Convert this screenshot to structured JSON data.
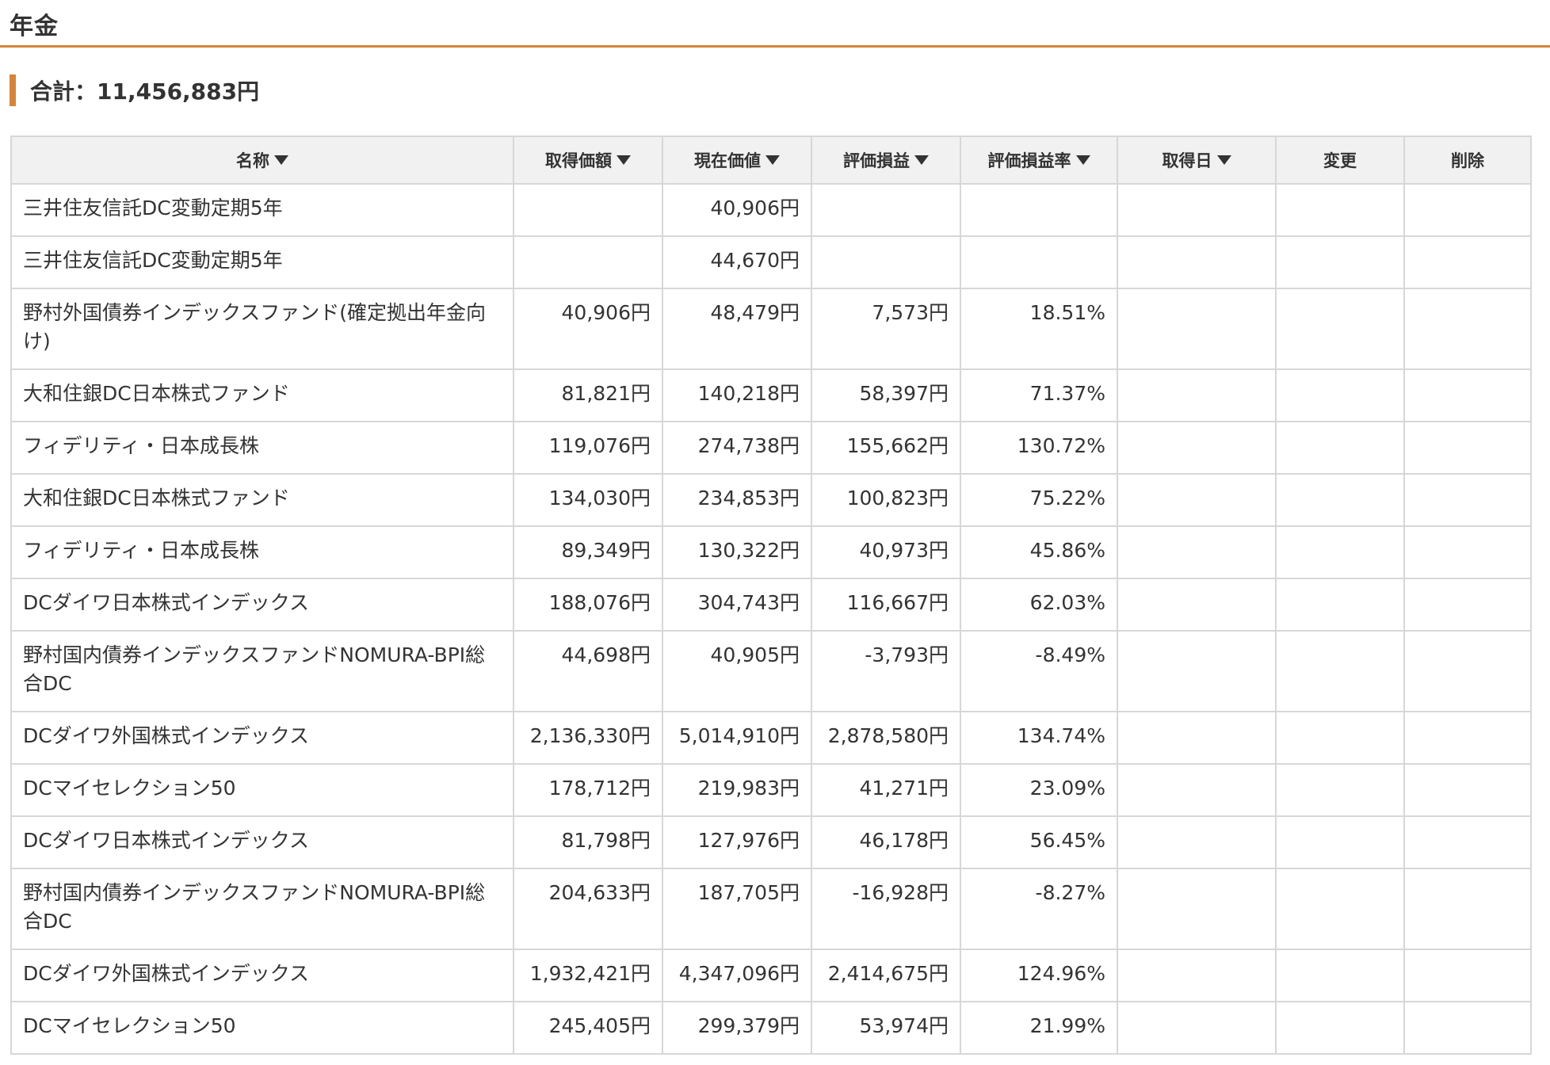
{
  "page": {
    "title": "年金",
    "total_label": "合計：11,456,883円"
  },
  "colors": {
    "accent": "#d5843b",
    "positive": "#4a6ea8",
    "negative": "#a83a3a",
    "header_bg": "#f1f1f1",
    "border": "#d7d7d7"
  },
  "table": {
    "headers": {
      "name": "名称",
      "acquisition": "取得価額",
      "current": "現在価値",
      "gain": "評価損益",
      "gain_rate": "評価損益率",
      "date": "取得日",
      "edit": "変更",
      "delete": "削除"
    },
    "rows": [
      {
        "name": "三井住友信託DC変動定期5年",
        "acquisition": "",
        "current": "40,906円",
        "gain": "",
        "gain_rate": "",
        "sign": ""
      },
      {
        "name": "三井住友信託DC変動定期5年",
        "acquisition": "",
        "current": "44,670円",
        "gain": "",
        "gain_rate": "",
        "sign": ""
      },
      {
        "name": "野村外国債券インデックスファンド(確定拠出年金向け)",
        "acquisition": "40,906円",
        "current": "48,479円",
        "gain": "7,573円",
        "gain_rate": "18.51%",
        "sign": "pos"
      },
      {
        "name": "大和住銀DC日本株式ファンド",
        "acquisition": "81,821円",
        "current": "140,218円",
        "gain": "58,397円",
        "gain_rate": "71.37%",
        "sign": "pos"
      },
      {
        "name": "フィデリティ・日本成長株",
        "acquisition": "119,076円",
        "current": "274,738円",
        "gain": "155,662円",
        "gain_rate": "130.72%",
        "sign": "pos"
      },
      {
        "name": "大和住銀DC日本株式ファンド",
        "acquisition": "134,030円",
        "current": "234,853円",
        "gain": "100,823円",
        "gain_rate": "75.22%",
        "sign": "pos"
      },
      {
        "name": "フィデリティ・日本成長株",
        "acquisition": "89,349円",
        "current": "130,322円",
        "gain": "40,973円",
        "gain_rate": "45.86%",
        "sign": "pos"
      },
      {
        "name": "DCダイワ日本株式インデックス",
        "acquisition": "188,076円",
        "current": "304,743円",
        "gain": "116,667円",
        "gain_rate": "62.03%",
        "sign": "pos"
      },
      {
        "name": "野村国内債券インデックスファンドNOMURA-BPI総合DC",
        "acquisition": "44,698円",
        "current": "40,905円",
        "gain": "-3,793円",
        "gain_rate": "-8.49%",
        "sign": "neg"
      },
      {
        "name": "DCダイワ外国株式インデックス",
        "acquisition": "2,136,330円",
        "current": "5,014,910円",
        "gain": "2,878,580円",
        "gain_rate": "134.74%",
        "sign": "pos"
      },
      {
        "name": "DCマイセレクション50",
        "acquisition": "178,712円",
        "current": "219,983円",
        "gain": "41,271円",
        "gain_rate": "23.09%",
        "sign": "pos"
      },
      {
        "name": "DCダイワ日本株式インデックス",
        "acquisition": "81,798円",
        "current": "127,976円",
        "gain": "46,178円",
        "gain_rate": "56.45%",
        "sign": "pos"
      },
      {
        "name": "野村国内債券インデックスファンドNOMURA-BPI総合DC",
        "acquisition": "204,633円",
        "current": "187,705円",
        "gain": "-16,928円",
        "gain_rate": "-8.27%",
        "sign": "neg"
      },
      {
        "name": "DCダイワ外国株式インデックス",
        "acquisition": "1,932,421円",
        "current": "4,347,096円",
        "gain": "2,414,675円",
        "gain_rate": "124.96%",
        "sign": "pos"
      },
      {
        "name": "DCマイセレクション50",
        "acquisition": "245,405円",
        "current": "299,379円",
        "gain": "53,974円",
        "gain_rate": "21.99%",
        "sign": "pos"
      }
    ]
  }
}
